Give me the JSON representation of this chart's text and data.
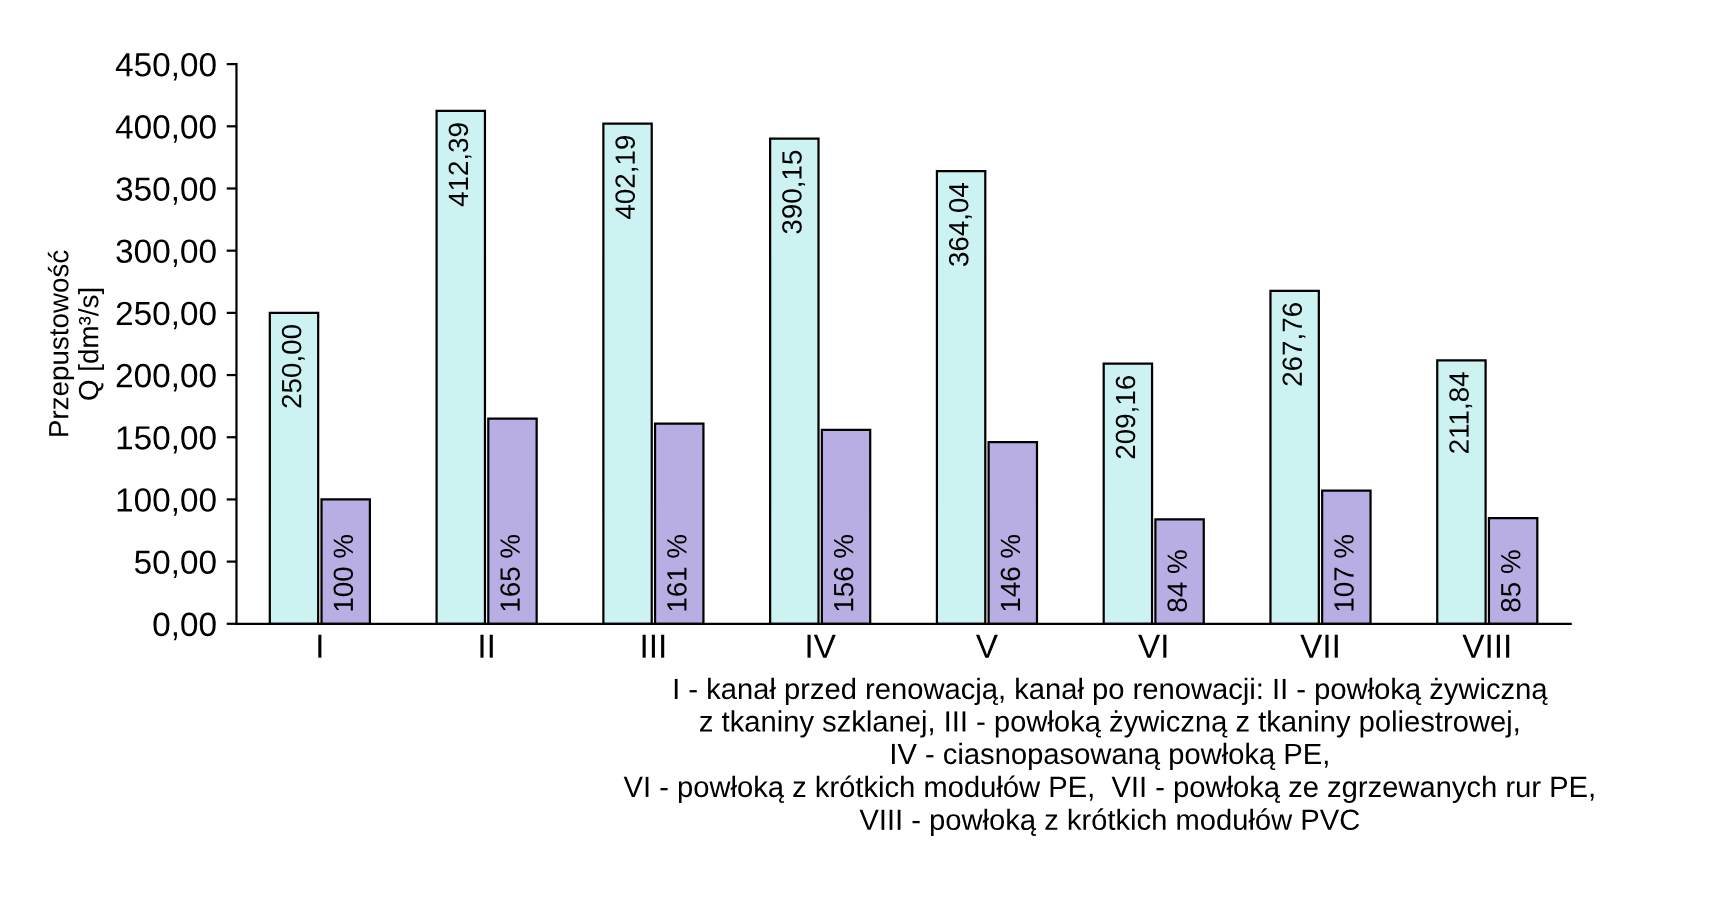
{
  "chart_data": {
    "type": "bar",
    "ylabel": "Przepustowość\nQ [dm³/s]",
    "categories": [
      "I",
      "II",
      "III",
      "IV",
      "V",
      "VI",
      "VII",
      "VIII"
    ],
    "series": [
      {
        "color": "#ccf2f2",
        "values": [
          250.0,
          412.39,
          402.19,
          390.15,
          364.04,
          209.16,
          267.76,
          211.84
        ],
        "value_labels": [
          "250,00",
          "412,39",
          "402,19",
          "390,15",
          "364,04",
          "209,16",
          "267,76",
          "211,84"
        ]
      },
      {
        "color": "#b9aee3",
        "values": [
          100,
          165,
          161,
          156,
          146,
          84,
          107,
          85
        ],
        "value_labels": [
          "100 %",
          "165 %",
          "161 %",
          "156 %",
          "146 %",
          "84 %",
          "107 %",
          "85 %"
        ]
      }
    ],
    "ylim": [
      0,
      450
    ],
    "yticks": [
      {
        "value": 0,
        "label": "0,00"
      },
      {
        "value": 50,
        "label": "50,00"
      },
      {
        "value": 100,
        "label": "100,00"
      },
      {
        "value": 150,
        "label": "150,00"
      },
      {
        "value": 200,
        "label": "200,00"
      },
      {
        "value": 250,
        "label": "250,00"
      },
      {
        "value": 300,
        "label": "300,00"
      },
      {
        "value": 350,
        "label": "350,00"
      },
      {
        "value": 400,
        "label": "400,00"
      },
      {
        "value": 450,
        "label": "450,00"
      }
    ],
    "grid": false,
    "legend": false,
    "annotations": [
      "I - kanał przed renowacją, kanał po renowacji: II - powłoką żywiczną\nz tkaniny szklanej, III - powłoką żywiczną z tkaniny poliestrowej,\nIV - ciasnopasowaną powłoką PE,\nVI - powłoką z krótkich modułów PE,  VII - powłoką ze zgrzewanych rur PE,\nVIII - powłoką z krótkich modułów PVC"
    ]
  }
}
